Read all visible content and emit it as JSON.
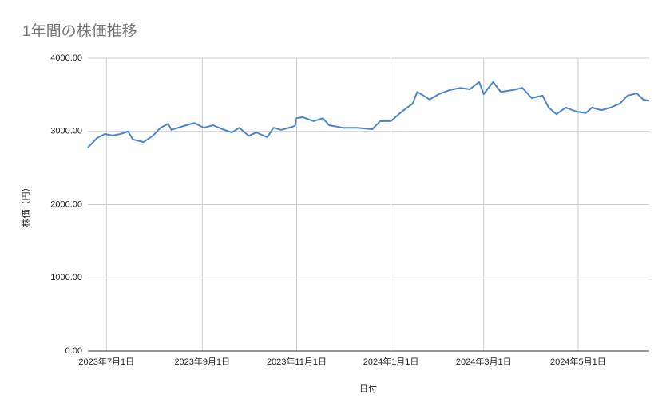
{
  "chart_data": {
    "type": "line",
    "title": "1年間の株価推移",
    "x_label": "日付",
    "y_label": "株価（円）",
    "color": "#4a86d0",
    "grid": true,
    "xlim": [
      "2023-06-19",
      "2024-06-16"
    ],
    "xticks": [
      {
        "value": "2023-07-01",
        "label": "2023年7月1日"
      },
      {
        "value": "2023-09-01",
        "label": "2023年9月1日"
      },
      {
        "value": "2023-11-01",
        "label": "2023年11月1日"
      },
      {
        "value": "2024-01-01",
        "label": "2024年1月1日"
      },
      {
        "value": "2024-03-01",
        "label": "2024年3月1日"
      },
      {
        "value": "2024-05-01",
        "label": "2024年5月1日"
      }
    ],
    "ylim": [
      0,
      4000
    ],
    "yticks": [
      {
        "value": 0,
        "label": "0.00"
      },
      {
        "value": 1000,
        "label": "1000.00"
      },
      {
        "value": 2000,
        "label": "2000.00"
      },
      {
        "value": 3000,
        "label": "3000.00"
      },
      {
        "value": 4000,
        "label": "4000.00"
      }
    ],
    "x": [
      "2023-06-19",
      "2023-06-25",
      "2023-06-30",
      "2023-07-05",
      "2023-07-10",
      "2023-07-15",
      "2023-07-18",
      "2023-07-25",
      "2023-07-31",
      "2023-08-05",
      "2023-08-10",
      "2023-08-12",
      "2023-08-20",
      "2023-08-27",
      "2023-09-02",
      "2023-09-08",
      "2023-09-14",
      "2023-09-20",
      "2023-09-25",
      "2023-10-01",
      "2023-10-06",
      "2023-10-13",
      "2023-10-17",
      "2023-10-22",
      "2023-10-27",
      "2023-10-31",
      "2023-11-01",
      "2023-11-05",
      "2023-11-12",
      "2023-11-18",
      "2023-11-22",
      "2023-12-01",
      "2023-12-10",
      "2023-12-20",
      "2023-12-25",
      "2024-01-01",
      "2024-01-08",
      "2024-01-15",
      "2024-01-18",
      "2024-01-22",
      "2024-01-26",
      "2024-02-01",
      "2024-02-08",
      "2024-02-15",
      "2024-02-21",
      "2024-02-27",
      "2024-03-01",
      "2024-03-07",
      "2024-03-12",
      "2024-03-20",
      "2024-03-26",
      "2024-04-01",
      "2024-04-08",
      "2024-04-12",
      "2024-04-17",
      "2024-04-23",
      "2024-04-30",
      "2024-05-06",
      "2024-05-10",
      "2024-05-16",
      "2024-05-22",
      "2024-05-28",
      "2024-06-02",
      "2024-06-08",
      "2024-06-12",
      "2024-06-16"
    ],
    "values": [
      2780,
      2910,
      2965,
      2945,
      2965,
      3000,
      2890,
      2855,
      2940,
      3050,
      3105,
      3020,
      3075,
      3115,
      3050,
      3085,
      3030,
      2985,
      3050,
      2940,
      2985,
      2920,
      3050,
      3020,
      3050,
      3075,
      3180,
      3195,
      3140,
      3180,
      3085,
      3050,
      3050,
      3030,
      3140,
      3140,
      3270,
      3380,
      3540,
      3490,
      3435,
      3510,
      3565,
      3595,
      3575,
      3675,
      3510,
      3675,
      3540,
      3565,
      3595,
      3455,
      3490,
      3325,
      3235,
      3325,
      3270,
      3250,
      3325,
      3290,
      3325,
      3380,
      3490,
      3520,
      3435,
      3420
    ]
  }
}
